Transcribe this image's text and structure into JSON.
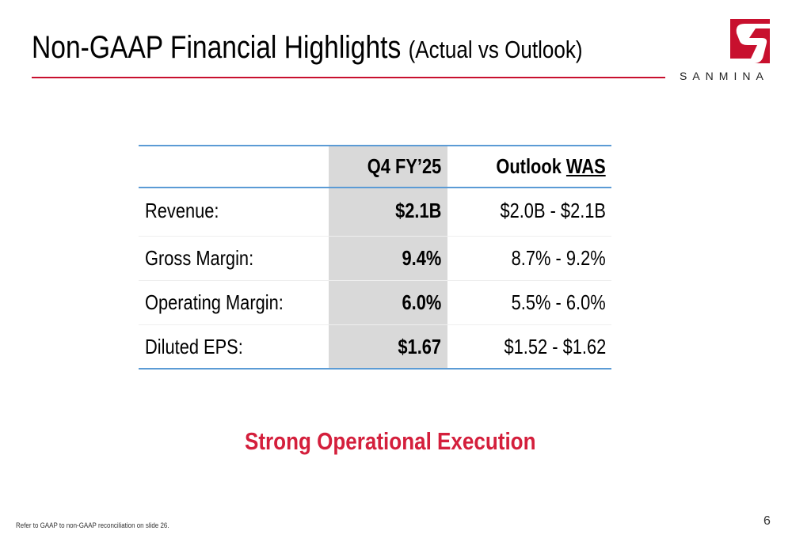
{
  "header": {
    "title": "Non-GAAP Financial Highlights",
    "subtitle": "(Actual vs Outlook)",
    "logo_text": "SANMINA"
  },
  "table": {
    "columns": {
      "actual": "Q4 FY’25",
      "outlook": "Outlook",
      "outlook_underlined": "WAS"
    },
    "rows": [
      [
        "Revenue:",
        "$2.1B",
        "$2.0B - $2.1B"
      ],
      [
        "Gross Margin:",
        "9.4%",
        "8.7% - 9.2%"
      ],
      [
        "Operating Margin:",
        "6.0%",
        "5.5% - 6.0%"
      ],
      [
        "Diluted EPS:",
        "$1.67",
        "$1.52 - $1.62"
      ]
    ]
  },
  "tagline": "Strong Operational Execution",
  "footnote": "Refer to GAAP to non-GAAP reconciliation on slide 26.",
  "page_number": "6"
}
